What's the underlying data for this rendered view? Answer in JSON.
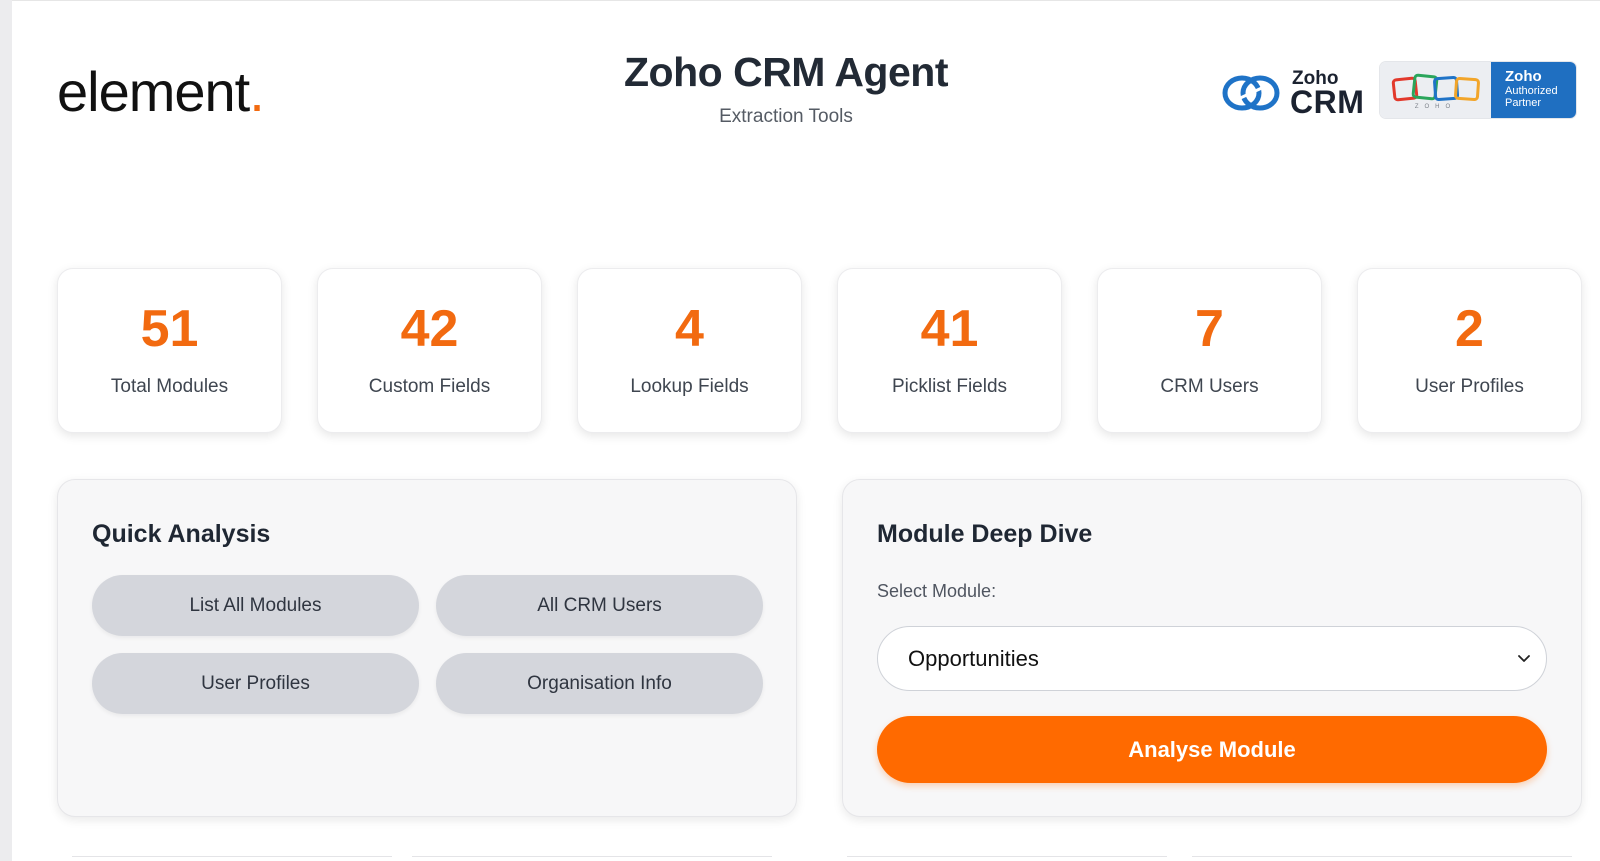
{
  "header": {
    "logo_text": "element",
    "logo_dot": ".",
    "title": "Zoho CRM Agent",
    "subtitle": "Extraction Tools",
    "zoho_crm_small": "Zoho",
    "zoho_crm_big": "CRM",
    "partner_line1": "Zoho",
    "partner_line2": "Authorized",
    "partner_line3": "Partner",
    "partner_mini": "ZOHO"
  },
  "stats": [
    {
      "value": "51",
      "label": "Total Modules"
    },
    {
      "value": "42",
      "label": "Custom Fields"
    },
    {
      "value": "4",
      "label": "Lookup Fields"
    },
    {
      "value": "41",
      "label": "Picklist Fields"
    },
    {
      "value": "7",
      "label": "CRM Users"
    },
    {
      "value": "2",
      "label": "User Profiles"
    }
  ],
  "quick_analysis": {
    "title": "Quick Analysis",
    "buttons": [
      "List All Modules",
      "All CRM Users",
      "User Profiles",
      "Organisation Info"
    ]
  },
  "deep_dive": {
    "title": "Module Deep Dive",
    "select_label": "Select Module:",
    "selected_module": "Opportunities",
    "action_label": "Analyse Module"
  },
  "colors": {
    "accent": "#ff6a00",
    "stat_value": "#f26a10",
    "partner_blue": "#1f6fc1"
  }
}
